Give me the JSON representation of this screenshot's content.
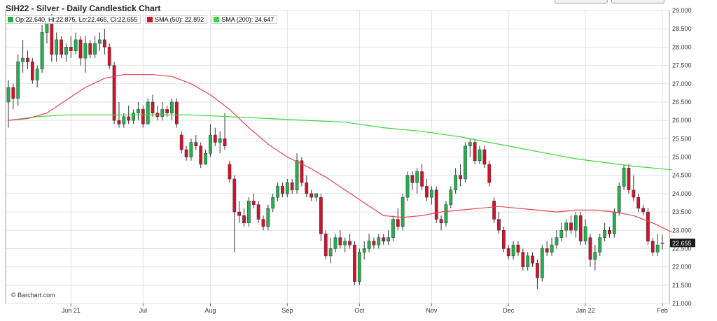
{
  "title": "SIH22 - Silver - Daily Candlestick Chart",
  "legend": {
    "ohlc": "Op:22.640, Hi:22.875, Lo:22.465, Cl:22.655",
    "sma50": "SMA (50): 22.892",
    "sma200": "SMA (200): 24.647"
  },
  "copyright": "© Barchart.com",
  "colors": {
    "up": "#22b14c",
    "down": "#d6102a",
    "sma50": "#e8414e",
    "sma200": "#3ad63a",
    "grid": "#dde2e8",
    "last_label_bg": "#1a1a1a"
  },
  "chart_data": {
    "type": "candlestick",
    "y_ticks": [
      "21.000",
      "21.500",
      "22.000",
      "22.500",
      "23.000",
      "23.500",
      "24.000",
      "24.500",
      "25.000",
      "25.500",
      "26.000",
      "26.500",
      "27.000",
      "27.500",
      "28.000",
      "28.500",
      "29.000"
    ],
    "ylim": [
      21.0,
      29.0
    ],
    "x_ticks": [
      "Jun 21",
      "Jul",
      "Aug",
      "Sep",
      "Oct",
      "Nov",
      "Dec",
      "Jan 22",
      "Feb"
    ],
    "x_tick_bar_index": [
      13,
      28,
      42,
      58,
      73,
      88,
      104,
      120,
      136
    ],
    "last_price_label": "22.655",
    "candles": [
      {
        "o": 26.5,
        "h": 27.1,
        "l": 25.8,
        "c": 26.9
      },
      {
        "o": 26.9,
        "h": 27.0,
        "l": 26.3,
        "c": 26.6
      },
      {
        "o": 26.6,
        "h": 27.8,
        "l": 26.4,
        "c": 27.6
      },
      {
        "o": 27.6,
        "h": 28.2,
        "l": 27.3,
        "c": 27.7
      },
      {
        "o": 27.7,
        "h": 27.9,
        "l": 27.4,
        "c": 27.6
      },
      {
        "o": 27.6,
        "h": 27.7,
        "l": 27.0,
        "c": 27.1
      },
      {
        "o": 27.1,
        "h": 27.5,
        "l": 26.9,
        "c": 27.4
      },
      {
        "o": 27.4,
        "h": 28.6,
        "l": 27.3,
        "c": 28.4
      },
      {
        "o": 28.4,
        "h": 28.8,
        "l": 28.1,
        "c": 28.7
      },
      {
        "o": 28.7,
        "h": 28.9,
        "l": 27.6,
        "c": 27.8
      },
      {
        "o": 27.8,
        "h": 28.4,
        "l": 27.6,
        "c": 28.2
      },
      {
        "o": 28.2,
        "h": 28.3,
        "l": 27.7,
        "c": 27.8
      },
      {
        "o": 27.8,
        "h": 28.1,
        "l": 27.6,
        "c": 28.0
      },
      {
        "o": 28.0,
        "h": 28.3,
        "l": 27.7,
        "c": 27.9
      },
      {
        "o": 27.9,
        "h": 28.4,
        "l": 27.8,
        "c": 28.2
      },
      {
        "o": 28.2,
        "h": 28.3,
        "l": 27.5,
        "c": 27.7
      },
      {
        "o": 27.7,
        "h": 28.3,
        "l": 27.3,
        "c": 28.1
      },
      {
        "o": 28.1,
        "h": 28.2,
        "l": 27.7,
        "c": 27.8
      },
      {
        "o": 27.8,
        "h": 28.3,
        "l": 27.7,
        "c": 28.1
      },
      {
        "o": 28.1,
        "h": 28.4,
        "l": 27.9,
        "c": 28.2
      },
      {
        "o": 28.2,
        "h": 28.5,
        "l": 27.8,
        "c": 28.0
      },
      {
        "o": 28.0,
        "h": 28.1,
        "l": 27.4,
        "c": 27.5
      },
      {
        "o": 27.5,
        "h": 27.6,
        "l": 25.9,
        "c": 26.0
      },
      {
        "o": 26.0,
        "h": 26.5,
        "l": 25.8,
        "c": 25.9
      },
      {
        "o": 25.9,
        "h": 26.2,
        "l": 25.8,
        "c": 26.1
      },
      {
        "o": 26.1,
        "h": 26.4,
        "l": 25.9,
        "c": 26.0
      },
      {
        "o": 26.0,
        "h": 26.3,
        "l": 25.9,
        "c": 26.2
      },
      {
        "o": 26.2,
        "h": 26.5,
        "l": 26.0,
        "c": 26.3
      },
      {
        "o": 26.3,
        "h": 26.4,
        "l": 25.8,
        "c": 25.9
      },
      {
        "o": 25.9,
        "h": 26.6,
        "l": 25.9,
        "c": 26.5
      },
      {
        "o": 26.5,
        "h": 26.7,
        "l": 26.1,
        "c": 26.2
      },
      {
        "o": 26.2,
        "h": 26.4,
        "l": 26.0,
        "c": 26.1
      },
      {
        "o": 26.1,
        "h": 26.5,
        "l": 26.0,
        "c": 26.3
      },
      {
        "o": 26.3,
        "h": 26.4,
        "l": 26.1,
        "c": 26.2
      },
      {
        "o": 26.2,
        "h": 26.6,
        "l": 26.0,
        "c": 26.5
      },
      {
        "o": 26.5,
        "h": 26.6,
        "l": 25.8,
        "c": 25.9
      },
      {
        "o": 25.6,
        "h": 25.7,
        "l": 25.1,
        "c": 25.2
      },
      {
        "o": 25.2,
        "h": 25.3,
        "l": 24.9,
        "c": 25.0
      },
      {
        "o": 25.0,
        "h": 25.5,
        "l": 24.9,
        "c": 25.4
      },
      {
        "o": 25.4,
        "h": 25.6,
        "l": 25.2,
        "c": 25.3
      },
      {
        "o": 25.3,
        "h": 25.4,
        "l": 24.7,
        "c": 24.8
      },
      {
        "o": 24.8,
        "h": 25.2,
        "l": 24.8,
        "c": 25.1
      },
      {
        "o": 25.1,
        "h": 25.9,
        "l": 25.0,
        "c": 25.6
      },
      {
        "o": 25.6,
        "h": 25.8,
        "l": 25.3,
        "c": 25.4
      },
      {
        "o": 25.4,
        "h": 25.7,
        "l": 25.1,
        "c": 25.5
      },
      {
        "o": 25.5,
        "h": 26.2,
        "l": 25.2,
        "c": 25.3
      },
      {
        "o": 24.8,
        "h": 24.9,
        "l": 24.3,
        "c": 24.4
      },
      {
        "o": 24.4,
        "h": 24.5,
        "l": 22.4,
        "c": 23.5
      },
      {
        "o": 23.5,
        "h": 23.8,
        "l": 23.2,
        "c": 23.4
      },
      {
        "o": 23.4,
        "h": 23.6,
        "l": 23.1,
        "c": 23.2
      },
      {
        "o": 23.2,
        "h": 23.9,
        "l": 23.1,
        "c": 23.8
      },
      {
        "o": 23.8,
        "h": 24.0,
        "l": 23.6,
        "c": 23.7
      },
      {
        "o": 23.7,
        "h": 23.8,
        "l": 23.2,
        "c": 23.3
      },
      {
        "o": 23.3,
        "h": 23.4,
        "l": 23.0,
        "c": 23.1
      },
      {
        "o": 23.1,
        "h": 23.7,
        "l": 23.0,
        "c": 23.6
      },
      {
        "o": 23.6,
        "h": 24.0,
        "l": 23.5,
        "c": 23.9
      },
      {
        "o": 23.9,
        "h": 24.3,
        "l": 23.8,
        "c": 24.2
      },
      {
        "o": 24.2,
        "h": 24.3,
        "l": 23.9,
        "c": 24.0
      },
      {
        "o": 24.0,
        "h": 24.4,
        "l": 23.9,
        "c": 24.3
      },
      {
        "o": 24.3,
        "h": 24.4,
        "l": 24.0,
        "c": 24.1
      },
      {
        "o": 24.1,
        "h": 25.1,
        "l": 24.0,
        "c": 24.9
      },
      {
        "o": 24.9,
        "h": 25.0,
        "l": 24.2,
        "c": 24.3
      },
      {
        "o": 24.3,
        "h": 24.5,
        "l": 23.9,
        "c": 24.0
      },
      {
        "o": 24.0,
        "h": 24.1,
        "l": 23.8,
        "c": 23.9
      },
      {
        "o": 23.9,
        "h": 24.0,
        "l": 23.8,
        "c": 24.0
      },
      {
        "o": 23.9,
        "h": 24.0,
        "l": 22.7,
        "c": 22.9
      },
      {
        "o": 22.9,
        "h": 23.0,
        "l": 22.2,
        "c": 22.3
      },
      {
        "o": 22.3,
        "h": 22.8,
        "l": 22.1,
        "c": 22.5
      },
      {
        "o": 22.5,
        "h": 22.9,
        "l": 22.4,
        "c": 22.8
      },
      {
        "o": 22.8,
        "h": 23.0,
        "l": 22.5,
        "c": 22.6
      },
      {
        "o": 22.6,
        "h": 22.8,
        "l": 22.4,
        "c": 22.7
      },
      {
        "o": 22.7,
        "h": 22.9,
        "l": 22.5,
        "c": 22.6
      },
      {
        "o": 22.6,
        "h": 22.7,
        "l": 21.5,
        "c": 21.6
      },
      {
        "o": 21.6,
        "h": 22.5,
        "l": 21.5,
        "c": 22.4
      },
      {
        "o": 22.4,
        "h": 22.7,
        "l": 22.2,
        "c": 22.5
      },
      {
        "o": 22.5,
        "h": 22.9,
        "l": 22.4,
        "c": 22.7
      },
      {
        "o": 22.7,
        "h": 22.8,
        "l": 22.5,
        "c": 22.6
      },
      {
        "o": 22.6,
        "h": 22.9,
        "l": 22.5,
        "c": 22.8
      },
      {
        "o": 22.8,
        "h": 22.9,
        "l": 22.6,
        "c": 22.7
      },
      {
        "o": 22.7,
        "h": 23.0,
        "l": 22.6,
        "c": 22.8
      },
      {
        "o": 22.8,
        "h": 23.4,
        "l": 22.7,
        "c": 23.3
      },
      {
        "o": 23.3,
        "h": 23.6,
        "l": 23.0,
        "c": 23.1
      },
      {
        "o": 23.1,
        "h": 24.0,
        "l": 23.0,
        "c": 23.9
      },
      {
        "o": 23.9,
        "h": 24.6,
        "l": 23.8,
        "c": 24.5
      },
      {
        "o": 24.5,
        "h": 24.6,
        "l": 24.1,
        "c": 24.3
      },
      {
        "o": 24.3,
        "h": 24.7,
        "l": 24.0,
        "c": 24.6
      },
      {
        "o": 24.6,
        "h": 24.8,
        "l": 24.1,
        "c": 24.2
      },
      {
        "o": 24.2,
        "h": 24.4,
        "l": 23.8,
        "c": 23.9
      },
      {
        "o": 23.9,
        "h": 24.2,
        "l": 23.7,
        "c": 24.1
      },
      {
        "o": 24.1,
        "h": 24.2,
        "l": 23.2,
        "c": 23.3
      },
      {
        "o": 23.3,
        "h": 23.4,
        "l": 23.0,
        "c": 23.2
      },
      {
        "o": 23.2,
        "h": 23.8,
        "l": 23.1,
        "c": 23.7
      },
      {
        "o": 23.7,
        "h": 24.2,
        "l": 23.6,
        "c": 24.1
      },
      {
        "o": 24.1,
        "h": 24.7,
        "l": 24.0,
        "c": 24.5
      },
      {
        "o": 24.5,
        "h": 24.8,
        "l": 24.2,
        "c": 24.4
      },
      {
        "o": 24.4,
        "h": 25.4,
        "l": 24.3,
        "c": 25.3
      },
      {
        "o": 25.3,
        "h": 25.5,
        "l": 25.0,
        "c": 25.4
      },
      {
        "o": 25.4,
        "h": 25.5,
        "l": 24.8,
        "c": 24.9
      },
      {
        "o": 24.9,
        "h": 25.3,
        "l": 24.8,
        "c": 25.2
      },
      {
        "o": 25.2,
        "h": 25.3,
        "l": 24.7,
        "c": 24.8
      },
      {
        "o": 24.8,
        "h": 24.9,
        "l": 24.2,
        "c": 24.3
      },
      {
        "o": 23.8,
        "h": 23.9,
        "l": 23.2,
        "c": 23.3
      },
      {
        "o": 23.3,
        "h": 23.5,
        "l": 22.9,
        "c": 23.0
      },
      {
        "o": 23.0,
        "h": 23.1,
        "l": 22.4,
        "c": 22.5
      },
      {
        "o": 22.5,
        "h": 22.6,
        "l": 22.2,
        "c": 22.3
      },
      {
        "o": 22.3,
        "h": 22.7,
        "l": 22.2,
        "c": 22.6
      },
      {
        "o": 22.6,
        "h": 22.7,
        "l": 22.3,
        "c": 22.4
      },
      {
        "o": 22.4,
        "h": 22.5,
        "l": 21.9,
        "c": 22.0
      },
      {
        "o": 22.0,
        "h": 22.4,
        "l": 21.9,
        "c": 22.3
      },
      {
        "o": 22.3,
        "h": 22.4,
        "l": 22.0,
        "c": 22.1
      },
      {
        "o": 22.1,
        "h": 22.2,
        "l": 21.4,
        "c": 21.7
      },
      {
        "o": 21.7,
        "h": 22.6,
        "l": 21.6,
        "c": 22.5
      },
      {
        "o": 22.5,
        "h": 22.7,
        "l": 22.3,
        "c": 22.4
      },
      {
        "o": 22.4,
        "h": 22.8,
        "l": 22.3,
        "c": 22.6
      },
      {
        "o": 22.6,
        "h": 23.0,
        "l": 22.5,
        "c": 22.8
      },
      {
        "o": 22.8,
        "h": 23.2,
        "l": 22.7,
        "c": 23.0
      },
      {
        "o": 23.0,
        "h": 23.3,
        "l": 22.8,
        "c": 23.2
      },
      {
        "o": 23.2,
        "h": 23.4,
        "l": 22.9,
        "c": 23.0
      },
      {
        "o": 23.0,
        "h": 23.5,
        "l": 22.8,
        "c": 23.4
      },
      {
        "o": 23.4,
        "h": 23.5,
        "l": 22.6,
        "c": 22.7
      },
      {
        "o": 22.7,
        "h": 23.3,
        "l": 22.6,
        "c": 23.1
      },
      {
        "o": 22.8,
        "h": 22.9,
        "l": 22.0,
        "c": 22.2
      },
      {
        "o": 22.2,
        "h": 22.6,
        "l": 21.9,
        "c": 22.4
      },
      {
        "o": 22.4,
        "h": 22.9,
        "l": 22.3,
        "c": 22.8
      },
      {
        "o": 22.8,
        "h": 23.2,
        "l": 22.7,
        "c": 23.0
      },
      {
        "o": 23.0,
        "h": 23.1,
        "l": 22.8,
        "c": 22.9
      },
      {
        "o": 22.9,
        "h": 23.6,
        "l": 22.8,
        "c": 23.5
      },
      {
        "o": 23.5,
        "h": 24.3,
        "l": 23.4,
        "c": 24.2
      },
      {
        "o": 24.2,
        "h": 24.8,
        "l": 24.1,
        "c": 24.7
      },
      {
        "o": 24.7,
        "h": 24.8,
        "l": 24.0,
        "c": 24.1
      },
      {
        "o": 24.1,
        "h": 24.5,
        "l": 23.8,
        "c": 23.9
      },
      {
        "o": 23.9,
        "h": 24.0,
        "l": 23.5,
        "c": 23.6
      },
      {
        "o": 23.6,
        "h": 23.7,
        "l": 23.4,
        "c": 23.5
      },
      {
        "o": 23.5,
        "h": 23.6,
        "l": 22.6,
        "c": 22.7
      },
      {
        "o": 22.7,
        "h": 22.8,
        "l": 22.3,
        "c": 22.4
      },
      {
        "o": 22.4,
        "h": 22.9,
        "l": 22.3,
        "c": 22.6
      },
      {
        "o": 22.64,
        "h": 22.875,
        "l": 22.465,
        "c": 22.655
      }
    ],
    "sma50": [
      {
        "i": 0,
        "v": 26.0
      },
      {
        "i": 4,
        "v": 26.05
      },
      {
        "i": 8,
        "v": 26.2
      },
      {
        "i": 12,
        "v": 26.55
      },
      {
        "i": 16,
        "v": 26.9
      },
      {
        "i": 20,
        "v": 27.15
      },
      {
        "i": 24,
        "v": 27.25
      },
      {
        "i": 30,
        "v": 27.25
      },
      {
        "i": 34,
        "v": 27.2
      },
      {
        "i": 38,
        "v": 27.0
      },
      {
        "i": 42,
        "v": 26.7
      },
      {
        "i": 46,
        "v": 26.3
      },
      {
        "i": 50,
        "v": 25.8
      },
      {
        "i": 54,
        "v": 25.35
      },
      {
        "i": 58,
        "v": 25.0
      },
      {
        "i": 62,
        "v": 24.75
      },
      {
        "i": 66,
        "v": 24.45
      },
      {
        "i": 70,
        "v": 24.1
      },
      {
        "i": 74,
        "v": 23.75
      },
      {
        "i": 78,
        "v": 23.4
      },
      {
        "i": 82,
        "v": 23.35
      },
      {
        "i": 86,
        "v": 23.4
      },
      {
        "i": 90,
        "v": 23.5
      },
      {
        "i": 94,
        "v": 23.55
      },
      {
        "i": 98,
        "v": 23.6
      },
      {
        "i": 102,
        "v": 23.65
      },
      {
        "i": 106,
        "v": 23.6
      },
      {
        "i": 110,
        "v": 23.55
      },
      {
        "i": 114,
        "v": 23.5
      },
      {
        "i": 118,
        "v": 23.55
      },
      {
        "i": 122,
        "v": 23.55
      },
      {
        "i": 126,
        "v": 23.5
      },
      {
        "i": 130,
        "v": 23.4
      },
      {
        "i": 134,
        "v": 23.2
      },
      {
        "i": 138,
        "v": 22.95
      }
    ],
    "sma200": [
      {
        "i": 0,
        "v": 26.0
      },
      {
        "i": 6,
        "v": 26.1
      },
      {
        "i": 12,
        "v": 26.15
      },
      {
        "i": 20,
        "v": 26.15
      },
      {
        "i": 30,
        "v": 26.15
      },
      {
        "i": 38,
        "v": 26.15
      },
      {
        "i": 46,
        "v": 26.1
      },
      {
        "i": 54,
        "v": 26.05
      },
      {
        "i": 62,
        "v": 26.0
      },
      {
        "i": 70,
        "v": 25.95
      },
      {
        "i": 78,
        "v": 25.8
      },
      {
        "i": 86,
        "v": 25.7
      },
      {
        "i": 94,
        "v": 25.55
      },
      {
        "i": 100,
        "v": 25.4
      },
      {
        "i": 106,
        "v": 25.25
      },
      {
        "i": 112,
        "v": 25.1
      },
      {
        "i": 118,
        "v": 24.95
      },
      {
        "i": 124,
        "v": 24.85
      },
      {
        "i": 130,
        "v": 24.75
      },
      {
        "i": 138,
        "v": 24.65
      }
    ]
  }
}
